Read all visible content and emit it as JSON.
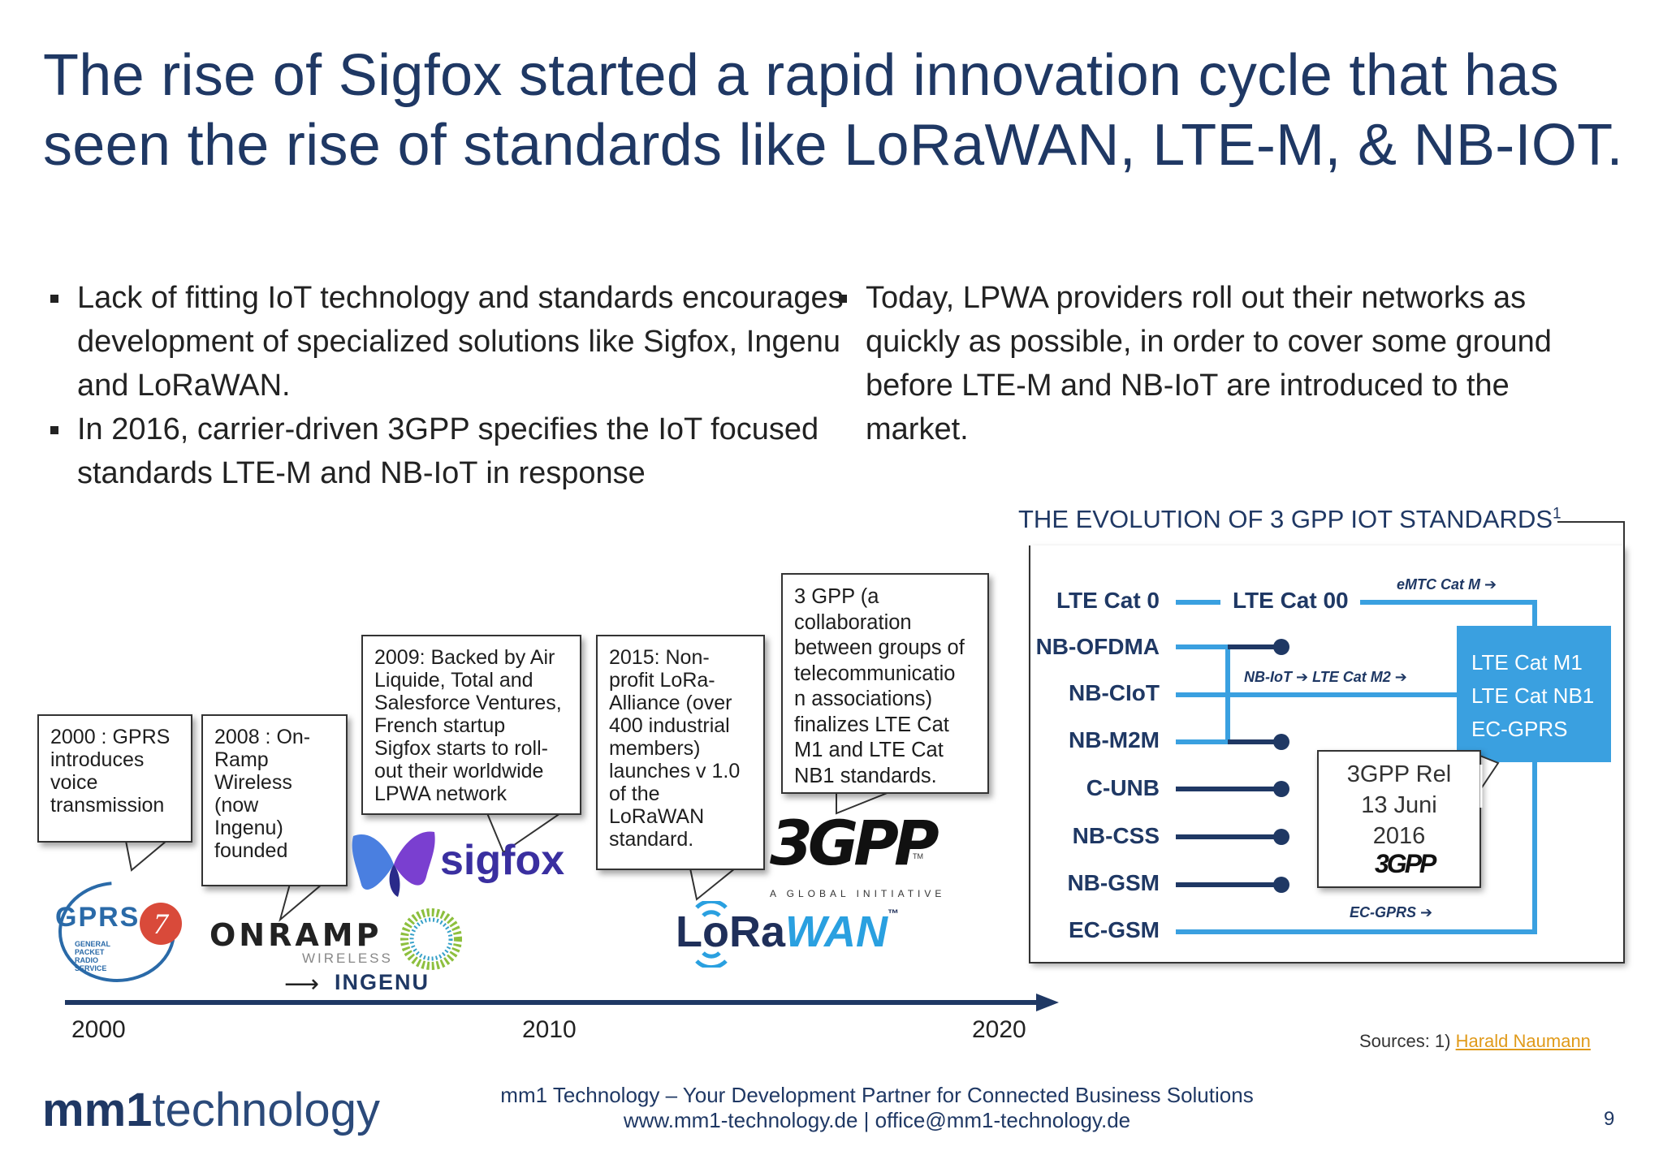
{
  "slide": {
    "title": "The rise of Sigfox started a rapid innovation cycle that has seen the rise of standards like LoRaWAN, LTE-M, & NB-IOT.",
    "page_number": "9"
  },
  "bullets_left": [
    "Lack of fitting IoT technology and standards encourages development of specialized solutions like Sigfox, Ingenu and LoRaWAN.",
    "In 2016, carrier-driven 3GPP specifies the IoT focused standards LTE-M and NB-IoT in response"
  ],
  "bullets_right": [
    "Today, LPWA providers roll out their networks as quickly as possible, in order to cover some ground before LTE-M and NB-IoT are introduced to the market."
  ],
  "timeline": {
    "years": [
      "2000",
      "2010",
      "2020"
    ],
    "callouts": {
      "gprs": [
        "2000 : GPRS",
        "introduces",
        "voice",
        "transmission"
      ],
      "onramp": [
        "2008 : On-",
        "Ramp",
        "Wireless",
        "(now",
        "Ingenu)",
        "founded"
      ],
      "sigfox": [
        "2009: Backed by Air",
        "Liquide, Total and",
        "Salesforce Ventures,",
        "French startup",
        "Sigfox starts to roll-",
        "out their worldwide",
        "LPWA network"
      ],
      "lora": [
        "2015: Non-",
        "profit LoRa-",
        "Alliance (over",
        "400 industrial",
        "members)",
        "launches v 1.0",
        "of the",
        "LoRaWAN",
        "standard."
      ],
      "threegpp": [
        "3 GPP (a",
        "collaboration",
        "between groups of",
        "telecommunicatio",
        "n associations)",
        "finalizes LTE Cat",
        "M1 and LTE Cat",
        "NB1 standards."
      ]
    },
    "logos": {
      "gprs": {
        "word": "GPRS",
        "sub": [
          "GENERAL",
          "PACKET",
          "RADIO",
          "SERVICE"
        ]
      },
      "onramp": {
        "word": "ONRAMP",
        "sub": "WIRELESS",
        "ingenu": "INGENU"
      },
      "sigfox": {
        "word": "sigfox"
      },
      "lorawan": {
        "word_a": "LoRa",
        "word_b": "WAN",
        "tm": "™"
      },
      "threegpp": {
        "word": "3GPP",
        "tagline": "A GLOBAL INITIATIVE",
        "tm": "TM"
      }
    }
  },
  "evolution": {
    "title": "THE EVOLUTION OF 3 GPP IOT STANDARDS",
    "title_sup": "1",
    "rows": [
      "LTE Cat 0",
      "NB-OFDMA",
      "NB-CIoT",
      "NB-M2M",
      "C-UNB",
      "NB-CSS",
      "NB-GSM",
      "EC-GSM"
    ],
    "lte_cat_00": "LTE Cat 00",
    "arrows": {
      "emtc": "eMTC Cat M ➔",
      "nbiot": "NB-IoT ➔ LTE Cat M2 ➔",
      "ecgprs": "EC-GPRS ➔"
    },
    "result_box": [
      "LTE Cat M1",
      "LTE Cat NB1",
      "EC-GPRS"
    ],
    "release_callout": [
      "3GPP Rel",
      "13 Juni",
      "2016"
    ],
    "release_logo": "3GPP",
    "colors": {
      "accent": "#3aa0e0",
      "dark": "#1f3864"
    }
  },
  "sources": {
    "prefix": "Sources: 1) ",
    "link": "Harald Naumann"
  },
  "footer": {
    "logo_bold": "mm1",
    "logo_light": "technology",
    "line1": "mm1 Technology – Your Development Partner for Connected Business Solutions",
    "website": "www.mm1-technology.de",
    "separator": "|",
    "email": "office@mm1-technology.de"
  }
}
